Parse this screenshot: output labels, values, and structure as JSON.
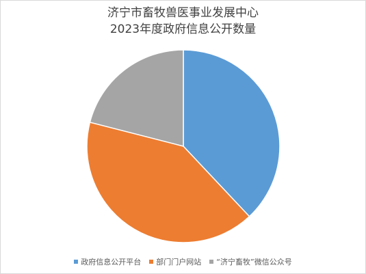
{
  "chart_data": {
    "type": "pie",
    "title": "济宁市畜牧兽医事业发展中心",
    "subtitle": "2023年度政府信息公开数量",
    "categories": [
      "政府信息公开平台",
      "部门门户网站",
      "“济宁畜牧”微信公众号"
    ],
    "values": [
      38,
      41,
      21
    ],
    "colors": [
      "#5b9bd5",
      "#ed7d31",
      "#a5a5a5"
    ],
    "legend_position": "bottom",
    "start_angle": "12 o'clock, clockwise"
  }
}
